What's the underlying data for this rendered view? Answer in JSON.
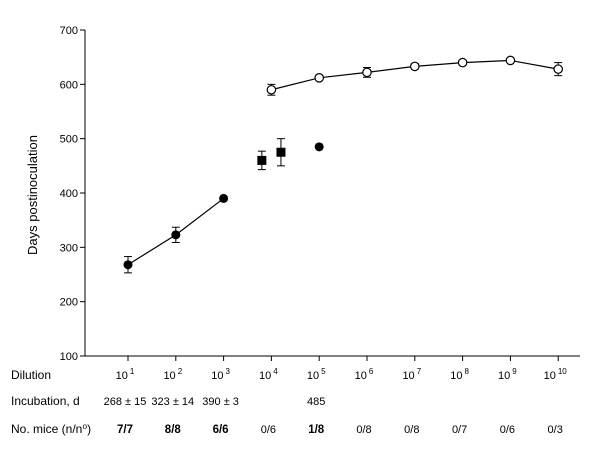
{
  "chart_data": {
    "type": "scatter",
    "ylabel": "Days postinoculation",
    "ylim": [
      100,
      700
    ],
    "yticks": [
      100,
      200,
      300,
      400,
      500,
      600,
      700
    ],
    "x_ticks": [
      {
        "base": "10",
        "exp": "1"
      },
      {
        "base": "10",
        "exp": "2"
      },
      {
        "base": "10",
        "exp": "3"
      },
      {
        "base": "10",
        "exp": "4"
      },
      {
        "base": "10",
        "exp": "5"
      },
      {
        "base": "10",
        "exp": "6"
      },
      {
        "base": "10",
        "exp": "7"
      },
      {
        "base": "10",
        "exp": "8"
      },
      {
        "base": "10",
        "exp": "9"
      },
      {
        "base": "10",
        "exp": "10"
      }
    ],
    "grid": false,
    "series": [
      {
        "marker": "filled-circle",
        "connected": true,
        "points": [
          {
            "x": 1,
            "y": 268,
            "err": 15
          },
          {
            "x": 2,
            "y": 323,
            "err": 14
          },
          {
            "x": 3,
            "y": 390,
            "err": 3
          }
        ]
      },
      {
        "marker": "filled-square",
        "connected": false,
        "points": [
          {
            "x": 3.8,
            "y": 460,
            "err": 17
          },
          {
            "x": 4.2,
            "y": 475,
            "err": 25
          }
        ]
      },
      {
        "marker": "filled-circle",
        "connected": false,
        "points": [
          {
            "x": 5,
            "y": 485,
            "err": 0
          }
        ]
      },
      {
        "marker": "open-circle",
        "connected": true,
        "points": [
          {
            "x": 4,
            "y": 590,
            "err": 10
          },
          {
            "x": 5,
            "y": 612,
            "err": 4
          },
          {
            "x": 6,
            "y": 622,
            "err": 9
          },
          {
            "x": 7,
            "y": 633,
            "err": 5
          },
          {
            "x": 8,
            "y": 640,
            "err": 4
          },
          {
            "x": 9,
            "y": 644,
            "err": 3
          },
          {
            "x": 10,
            "y": 628,
            "err": 12
          }
        ]
      }
    ]
  },
  "table": {
    "rows": [
      {
        "label": "Dilution",
        "cells": []
      },
      {
        "label": "Incubation, d",
        "cells": [
          {
            "x": 1,
            "text": "268 ± 15"
          },
          {
            "x": 2,
            "text": "323 ± 14"
          },
          {
            "x": 3,
            "text": "390 ± 3"
          },
          {
            "x": 5,
            "text": "485"
          }
        ]
      },
      {
        "label": "No. mice (n/n⁰)",
        "cells": [
          {
            "x": 1,
            "text": "7/7",
            "bold": true
          },
          {
            "x": 2,
            "text": "8/8",
            "bold": true
          },
          {
            "x": 3,
            "text": "6/6",
            "bold": true
          },
          {
            "x": 4,
            "text": "0/6"
          },
          {
            "x": 5,
            "text": "1/8",
            "bold": true
          },
          {
            "x": 6,
            "text": "0/8"
          },
          {
            "x": 7,
            "text": "0/8"
          },
          {
            "x": 8,
            "text": "0/7"
          },
          {
            "x": 9,
            "text": "0/6"
          },
          {
            "x": 10,
            "text": "0/3"
          }
        ]
      }
    ]
  }
}
